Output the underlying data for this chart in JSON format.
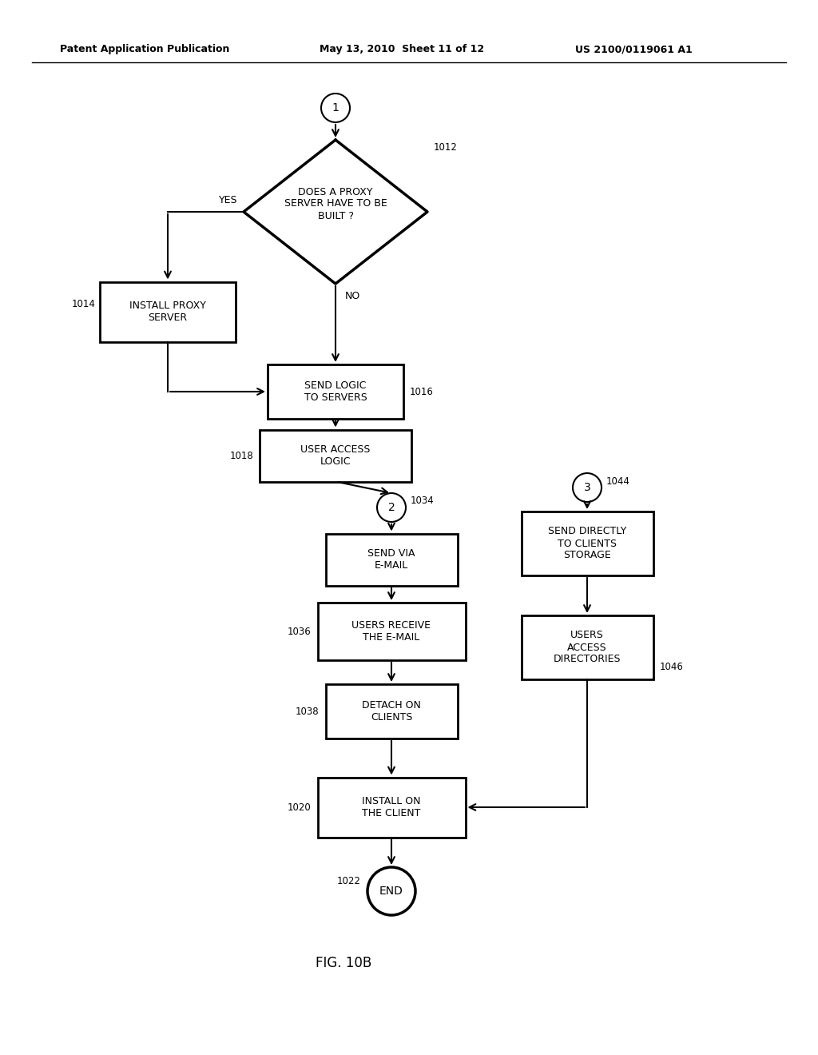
{
  "bg_color": "#ffffff",
  "header_left": "Patent Application Publication",
  "header_mid": "May 13, 2010  Sheet 11 of 12",
  "header_right": "US 2100/0119061 A1",
  "figure_label": "FIG. 10B",
  "figw": 10.24,
  "figh": 13.2,
  "dpi": 100
}
